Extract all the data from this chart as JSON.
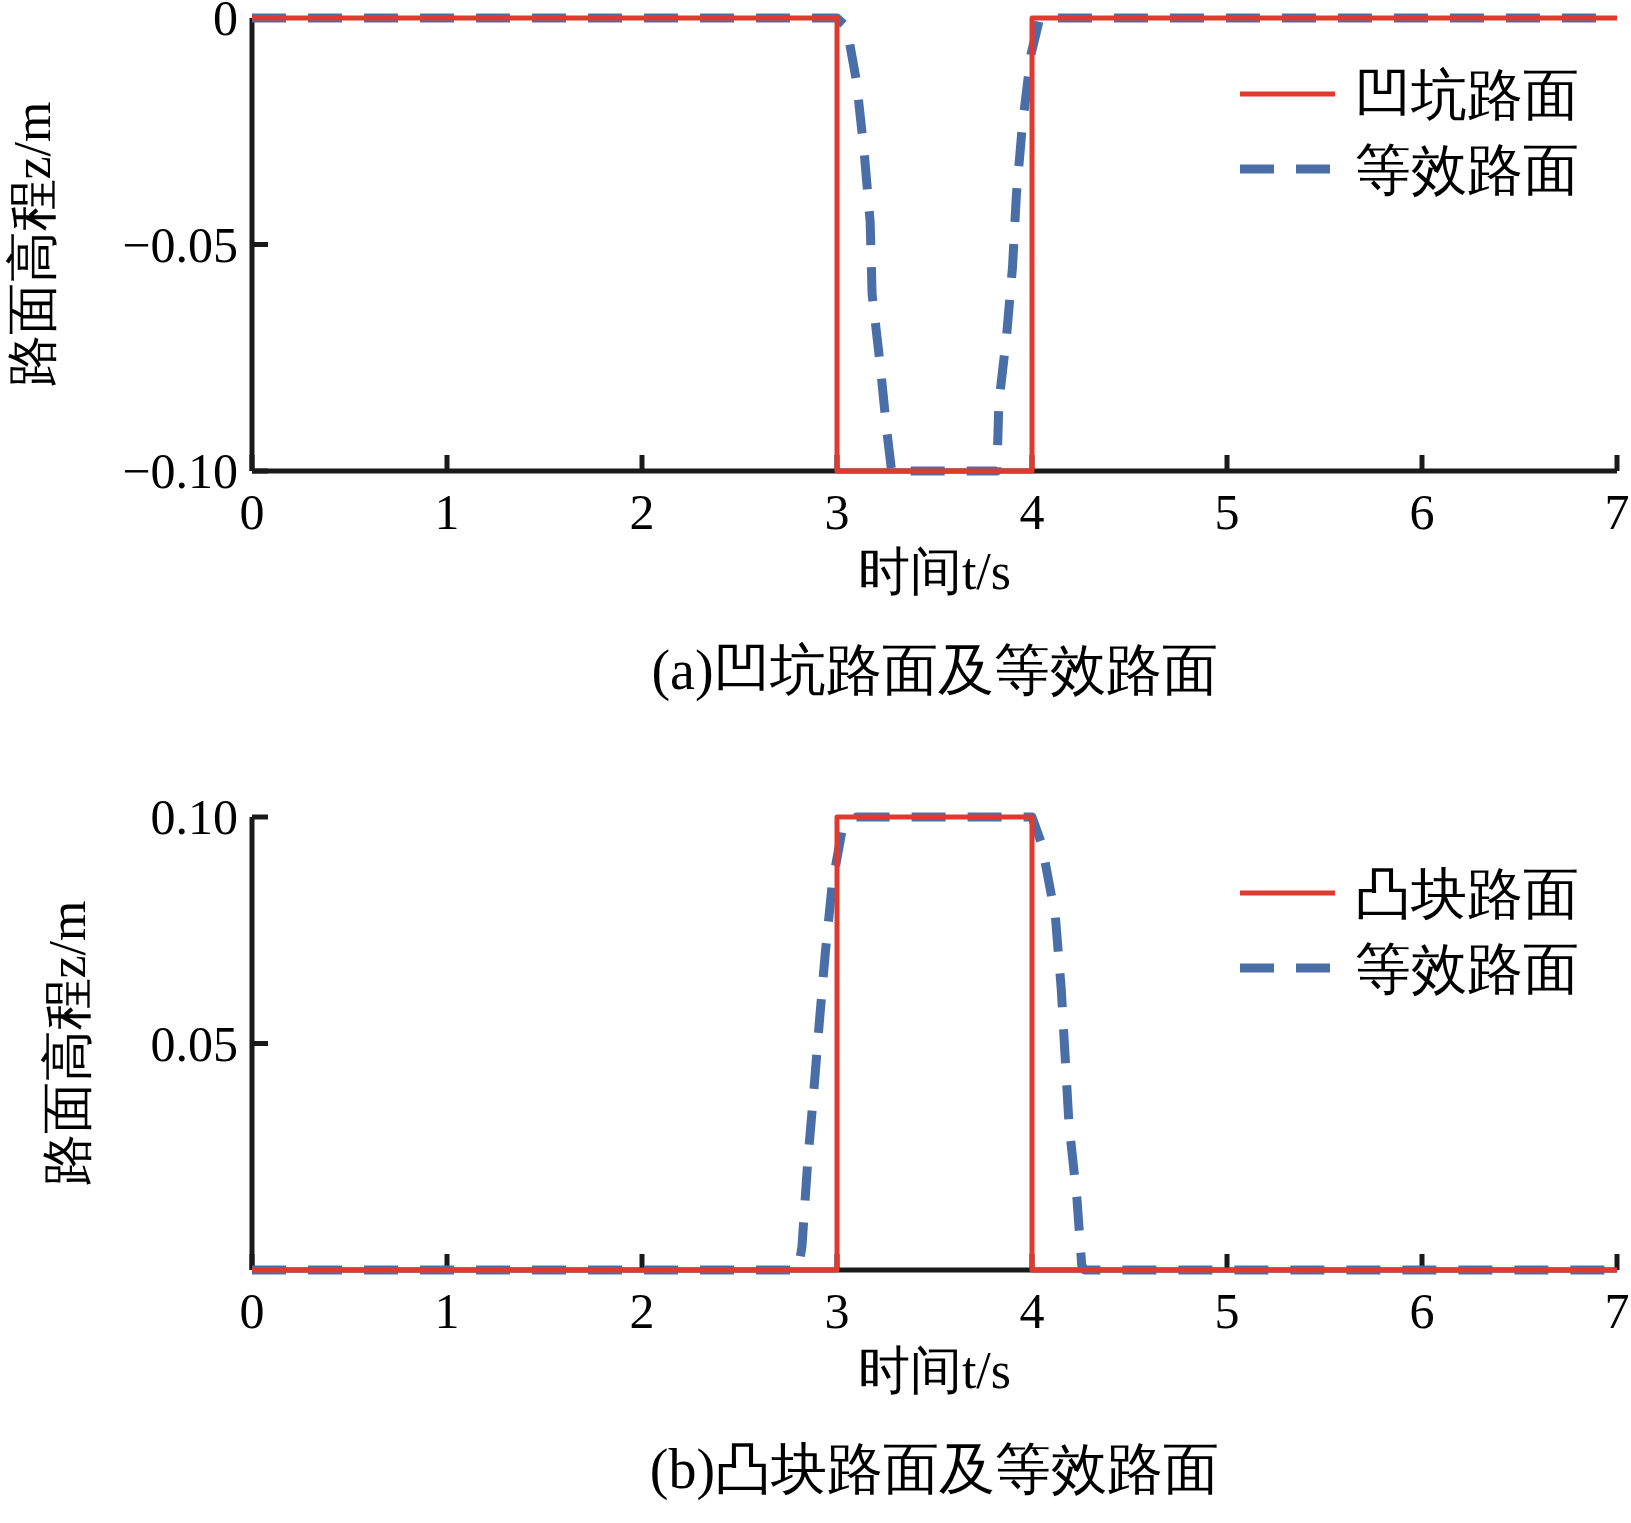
{
  "chart_data": [
    {
      "type": "line",
      "title": "(a)凹坑路面及等效路面",
      "xlabel": "时间t/s",
      "ylabel": "路面高程z/m",
      "xlim": [
        0,
        7
      ],
      "xticks": [
        0,
        1,
        2,
        3,
        4,
        5,
        6,
        7
      ],
      "ylim": [
        -0.1,
        0
      ],
      "yticks": [
        {
          "value": -0.1,
          "label": "−0.10"
        },
        {
          "value": -0.05,
          "label": "−0.05"
        },
        0
      ],
      "grid": false,
      "legend": "top right",
      "series": [
        {
          "name": "凹坑路面",
          "color": "#e03a2e",
          "line_style": "solid",
          "x": [
            0,
            3,
            3,
            4,
            4,
            7
          ],
          "values": [
            0,
            0,
            -0.1,
            -0.1,
            0,
            0
          ]
        },
        {
          "name": "等效路面",
          "color": "#4a6ea8",
          "line_style": "dashed",
          "x": [
            0,
            3.0,
            3.05,
            3.1,
            3.14,
            3.17,
            3.18,
            3.22,
            3.255,
            3.28,
            3.82,
            3.83,
            3.87,
            3.9,
            3.92,
            3.95,
            3.995,
            4.04,
            7
          ],
          "values": [
            0,
            0,
            -0.002,
            -0.014,
            -0.03,
            -0.045,
            -0.061,
            -0.076,
            -0.091,
            -0.1,
            -0.1,
            -0.085,
            -0.07,
            -0.055,
            -0.039,
            -0.024,
            -0.008,
            0,
            0
          ]
        }
      ]
    },
    {
      "type": "line",
      "title": "(b)凸块路面及等效路面",
      "xlabel": "时间t/s",
      "ylabel": "路面高程z/m",
      "xlim": [
        0,
        7
      ],
      "xticks": [
        0,
        1,
        2,
        3,
        4,
        5,
        6,
        7
      ],
      "ylim": [
        0,
        0.1
      ],
      "yticks": [
        {
          "value": 0,
          "label": null
        },
        0.05,
        {
          "value": 0.1,
          "label": "0.10"
        }
      ],
      "grid": false,
      "legend": "top right",
      "series": [
        {
          "name": "凸块路面",
          "color": "#e03a2e",
          "line_style": "solid",
          "x": [
            0,
            3,
            3,
            4,
            4,
            7
          ],
          "values": [
            0,
            0,
            0.1,
            0.1,
            0,
            0
          ]
        },
        {
          "name": "等效路面",
          "color": "#4a6ea8",
          "line_style": "dashed",
          "x": [
            0,
            2.8,
            2.82,
            2.85,
            2.88,
            2.91,
            2.94,
            2.975,
            3.03,
            3.1,
            4.0,
            4.05,
            4.12,
            4.15,
            4.17,
            4.19,
            4.23,
            4.255,
            4.27,
            7
          ],
          "values": [
            0,
            0,
            0.005,
            0.024,
            0.039,
            0.055,
            0.07,
            0.085,
            0.098,
            0.1,
            0.1,
            0.094,
            0.078,
            0.062,
            0.047,
            0.032,
            0.016,
            0.001,
            0,
            0
          ]
        }
      ]
    }
  ]
}
